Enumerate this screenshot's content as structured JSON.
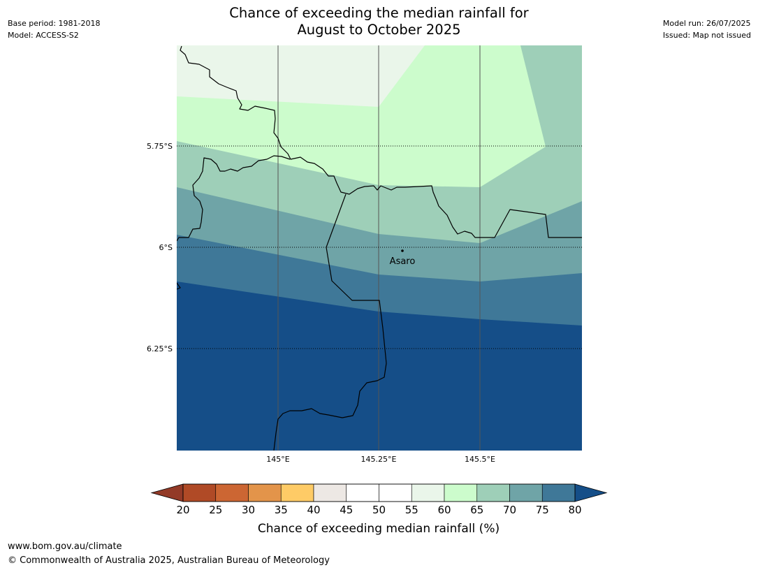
{
  "title_line1": "Chance of exceeding the median rainfall for",
  "title_line2": "August to October 2025",
  "meta": {
    "base_period": "Base period: 1981-2018",
    "model": "Model: ACCESS-S2",
    "model_run": "Model run: 26/07/2025",
    "issued": "Issued: Map not issued"
  },
  "map": {
    "lat_labels": [
      "5.75°S",
      "6°S",
      "6.25°S"
    ],
    "lon_labels": [
      "145°E",
      "145.25°E",
      "145.5°E"
    ],
    "place_label": "Asaro",
    "bands": [
      {
        "range": "55-60",
        "color": "#eaf6ea"
      },
      {
        "range": "60-65",
        "color": "#ccfccc"
      },
      {
        "range": "65-70",
        "color": "#9ecfb8"
      },
      {
        "range": "70-75",
        "color": "#6fa4a7"
      },
      {
        "range": "75-80",
        "color": "#3f7898"
      },
      {
        "range": ">80",
        "color": "#154e88"
      }
    ]
  },
  "colorbar": {
    "ticks": [
      "20",
      "25",
      "30",
      "35",
      "40",
      "45",
      "50",
      "55",
      "60",
      "65",
      "70",
      "75",
      "80"
    ],
    "colors": [
      "#b04a26",
      "#cc6633",
      "#e3944a",
      "#fecb66",
      "#ede8e4",
      "#ffffff",
      "#ffffff",
      "#eaf6ea",
      "#ccfccc",
      "#9ecfb8",
      "#6fa4a7",
      "#3f7898"
    ],
    "under_color": "#933a27",
    "over_color": "#154e88",
    "label": "Chance of exceeding median rainfall (%)"
  },
  "footer": {
    "url": "www.bom.gov.au/climate",
    "copyright": "© Commonwealth of Australia 2025, Australian Bureau of Meteorology"
  }
}
